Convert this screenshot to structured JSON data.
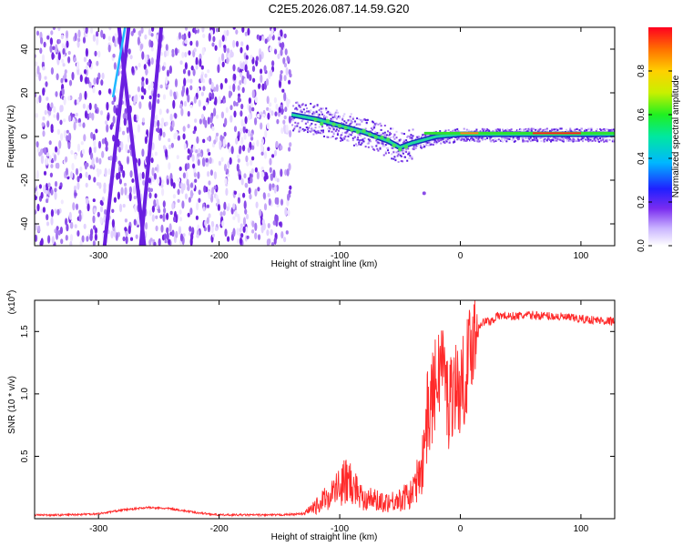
{
  "title": "C2E5.2026.087.14.59.G20",
  "chart_data": [
    {
      "type": "heatmap",
      "name": "spectrogram",
      "title": "C2E5.2026.087.14.59.G20",
      "xlabel": "Height of straight line (km)",
      "ylabel": "Frequency (Hz)",
      "xlim": [
        -353,
        128
      ],
      "ylim": [
        -50,
        50
      ],
      "xticks": [
        -300,
        -200,
        -100,
        0,
        100
      ],
      "xtick_labels": [
        "-300",
        "-200",
        "-100",
        "0",
        "100"
      ],
      "yticks": [
        -40,
        -20,
        0,
        20,
        40
      ],
      "ytick_labels": [
        "-40",
        "-20",
        "0",
        "20",
        "40"
      ],
      "noise_region_end_km": -140,
      "ridge": {
        "x": [
          -140,
          -120,
          -100,
          -80,
          -60,
          -50,
          -40,
          -20,
          0,
          20,
          60,
          100,
          128
        ],
        "y": [
          10,
          8,
          5,
          2,
          -2,
          -5,
          -3,
          0,
          1,
          1,
          1,
          1,
          1
        ]
      },
      "colorbar": {
        "label": "Normalized spectral amplitude",
        "range": [
          0,
          1
        ],
        "ticks": [
          0.0,
          0.2,
          0.4,
          0.6,
          0.8
        ],
        "tick_labels": [
          "0.0",
          "0.2",
          "0.4",
          "0.6",
          "0.8"
        ]
      }
    },
    {
      "type": "line",
      "name": "snr",
      "xlabel": "Height of straight line (km)",
      "ylabel": "SNR (10 * v/v)",
      "y_multiplier_label": "(x10",
      "y_multiplier_exp": "4",
      "y_multiplier_close": ")",
      "xlim": [
        -353,
        128
      ],
      "ylim": [
        0,
        17500
      ],
      "xticks": [
        -300,
        -200,
        -100,
        0,
        100
      ],
      "xtick_labels": [
        "-300",
        "-200",
        "-100",
        "0",
        "100"
      ],
      "yticks": [
        5000,
        10000,
        15000
      ],
      "ytick_labels": [
        "0.5",
        "1.0",
        "1.5"
      ],
      "color": "#ff2a2a",
      "series": [
        {
          "name": "SNR",
          "x": [
            -353,
            -330,
            -300,
            -280,
            -260,
            -240,
            -220,
            -200,
            -180,
            -150,
            -130,
            -120,
            -110,
            -100,
            -95,
            -90,
            -85,
            -80,
            -70,
            -60,
            -50,
            -40,
            -35,
            -30,
            -25,
            -20,
            -15,
            -10,
            -5,
            0,
            5,
            10,
            15,
            20,
            25,
            30,
            35,
            40,
            60,
            80,
            100,
            128
          ],
          "y": [
            300,
            300,
            400,
            700,
            900,
            800,
            500,
            300,
            300,
            300,
            400,
            1200,
            2200,
            3200,
            3800,
            3500,
            2800,
            2200,
            1800,
            1700,
            1900,
            2500,
            4000,
            7000,
            9000,
            11000,
            13000,
            9000,
            11000,
            10000,
            12000,
            14500,
            15500,
            15800,
            15800,
            16200,
            16300,
            16200,
            16300,
            16200,
            16000,
            15800
          ]
        }
      ]
    }
  ]
}
